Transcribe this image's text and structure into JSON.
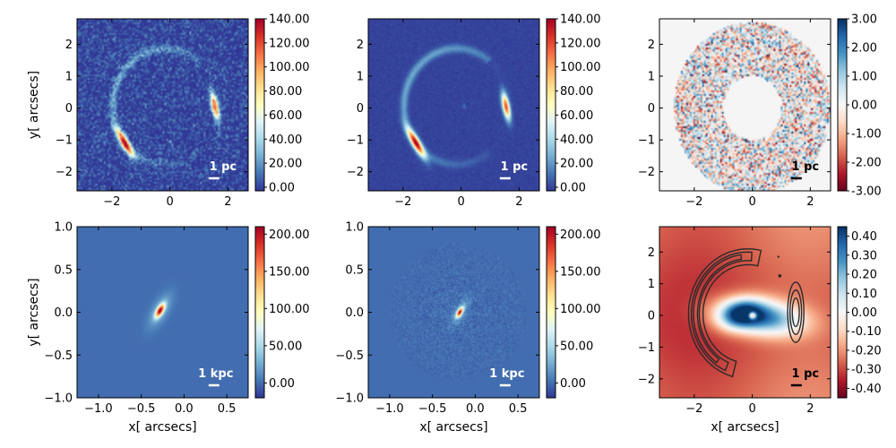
{
  "chart_data": [
    {
      "type": "heatmap",
      "name": "lens-image-data",
      "title": "",
      "xlabel": "",
      "ylabel": "y[ arcsecs]",
      "xlim": [
        -3.2,
        2.7
      ],
      "ylim": [
        -2.6,
        2.8
      ],
      "xticks": [
        -2,
        0,
        2
      ],
      "yticks": [
        -2,
        -1,
        0,
        1,
        2
      ],
      "colormap": "RdYlBu_r",
      "colorbar": {
        "min": -3,
        "max": 140,
        "ticks": [
          0,
          20,
          40,
          60,
          80,
          100,
          120,
          140
        ],
        "labels": [
          "0.00",
          "20.00",
          "40.00",
          "60.00",
          "80.00",
          "100.00",
          "120.00",
          "140.00"
        ]
      },
      "scalebar": {
        "label": "1 pc",
        "color": "#ffffff"
      }
    },
    {
      "type": "heatmap",
      "name": "lens-image-model",
      "title": "",
      "xlabel": "",
      "ylabel": "",
      "xlim": [
        -3.2,
        2.7
      ],
      "ylim": [
        -2.6,
        2.8
      ],
      "xticks": [
        -2,
        0,
        2
      ],
      "yticks": [
        -2,
        -1,
        0,
        1,
        2
      ],
      "colormap": "RdYlBu_r",
      "colorbar": {
        "min": -3,
        "max": 140,
        "ticks": [
          0,
          20,
          40,
          60,
          80,
          100,
          120,
          140
        ],
        "labels": [
          "0.00",
          "20.00",
          "40.00",
          "60.00",
          "80.00",
          "100.00",
          "120.00",
          "140.00"
        ]
      },
      "scalebar": {
        "label": "1 pc",
        "color": "#ffffff"
      }
    },
    {
      "type": "heatmap",
      "name": "normalized-residuals",
      "title": "",
      "xlabel": "",
      "ylabel": "",
      "xlim": [
        -3.2,
        2.7
      ],
      "ylim": [
        -2.6,
        2.8
      ],
      "xticks": [
        -2,
        0,
        2
      ],
      "yticks": [
        -2,
        -1,
        0,
        1,
        2
      ],
      "colormap": "RdBu",
      "colorbar": {
        "min": -3,
        "max": 3,
        "ticks": [
          -3,
          -2,
          -1,
          0,
          1,
          2,
          3
        ],
        "labels": [
          "-3.00",
          "-2.00",
          "-1.00",
          "0.00",
          "1.00",
          "2.00",
          "3.00"
        ]
      },
      "scalebar": {
        "label": "1 pc",
        "color": "#000000"
      },
      "mask": {
        "inner_radius_arcsec": 1.0,
        "outer_radius_arcsec": 2.7
      }
    },
    {
      "type": "heatmap",
      "name": "source-true",
      "title": "",
      "xlabel": "x[ arcsecs]",
      "ylabel": "y[ arcsecs]",
      "xlim": [
        -1.25,
        0.75
      ],
      "ylim": [
        -1.0,
        1.0
      ],
      "xticks": [
        -1.0,
        -0.5,
        0.0,
        0.5
      ],
      "yticks": [
        -1.0,
        -0.5,
        0.0,
        0.5,
        1.0
      ],
      "xticklabels": [
        "−1.0",
        "−0.5",
        "0.0",
        "0.5"
      ],
      "yticklabels": [
        "−1.0",
        "−0.5",
        "0.0",
        "0.5",
        "1.0"
      ],
      "colormap": "RdYlBu_r",
      "colorbar": {
        "min": -20,
        "max": 210,
        "ticks": [
          0,
          50,
          100,
          150,
          200
        ],
        "labels": [
          "0.00",
          "50.00",
          "100.00",
          "150.00",
          "200.00"
        ]
      },
      "scalebar": {
        "label": "1 kpc",
        "color": "#ffffff"
      },
      "peak": {
        "x": -0.28,
        "y": 0.02
      }
    },
    {
      "type": "heatmap",
      "name": "source-reconstruction",
      "title": "",
      "xlabel": "x[ arcsecs]",
      "ylabel": "",
      "xlim": [
        -1.25,
        0.75
      ],
      "ylim": [
        -1.0,
        1.0
      ],
      "xticks": [
        -1.0,
        -0.5,
        0.0,
        0.5
      ],
      "yticks": [
        -1.0,
        -0.5,
        0.0,
        0.5,
        1.0
      ],
      "xticklabels": [
        "−1.0",
        "−0.5",
        "0.0",
        "0.5"
      ],
      "yticklabels": [
        "−1.0",
        "−0.5",
        "0.0",
        "0.5",
        "1.0"
      ],
      "colormap": "RdYlBu_r",
      "colorbar": {
        "min": -20,
        "max": 210,
        "ticks": [
          0,
          50,
          100,
          150,
          200
        ],
        "labels": [
          "0.00",
          "50.00",
          "100.00",
          "150.00",
          "200.00"
        ]
      },
      "scalebar": {
        "label": "1 kpc",
        "color": "#ffffff"
      },
      "peak": {
        "x": -0.18,
        "y": 0.0
      }
    },
    {
      "type": "heatmap",
      "name": "potential-correction",
      "title": "",
      "xlabel": "x[ arcsecs]",
      "ylabel": "",
      "xlim": [
        -3.2,
        2.7
      ],
      "ylim": [
        -2.6,
        2.8
      ],
      "xticks": [
        -2,
        0,
        2
      ],
      "yticks": [
        -2,
        -1,
        0,
        1,
        2
      ],
      "colormap": "RdBu",
      "colorbar": {
        "min": -0.45,
        "max": 0.45,
        "ticks": [
          -0.4,
          -0.3,
          -0.2,
          -0.1,
          0,
          0.1,
          0.2,
          0.3,
          0.4
        ],
        "labels": [
          "-0.40",
          "-0.30",
          "-0.20",
          "-0.10",
          "0.00",
          "0.10",
          "0.20",
          "0.30",
          "0.40"
        ]
      },
      "scalebar": {
        "label": "1 pc",
        "color": "#000000"
      },
      "contours": "lensed-arc-outline"
    }
  ]
}
